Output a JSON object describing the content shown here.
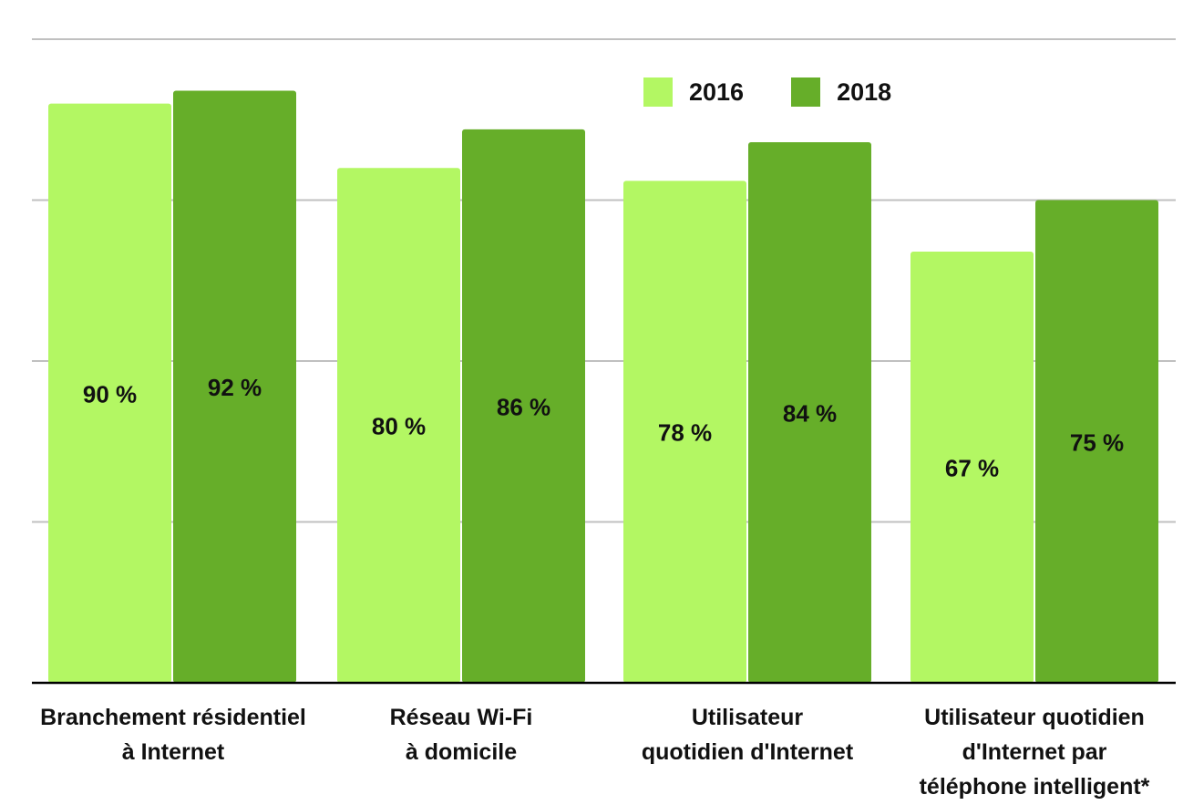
{
  "chart_data": {
    "type": "bar",
    "categories": [
      "Branchement résidentiel\nà Internet",
      "Réseau Wi-Fi\nà domicile",
      "Utilisateur\nquotidien d'Internet",
      "Utilisateur quotidien\nd'Internet par\ntéléphone intelligent*"
    ],
    "series": [
      {
        "name": "2016",
        "values": [
          90,
          80,
          78,
          67
        ],
        "labels": [
          "90 %",
          "80 %",
          "78 %",
          "67 %"
        ],
        "color": "#b3f763"
      },
      {
        "name": "2018",
        "values": [
          92,
          86,
          84,
          75
        ],
        "labels": [
          "92 %",
          "86 %",
          "84 %",
          "75 %"
        ],
        "color": "#66ae29"
      }
    ],
    "ylim": [
      0,
      100
    ],
    "grid": true,
    "legend_position": "top-right",
    "gridline_color": "#c0c0c0",
    "axis_color": "#000000"
  }
}
